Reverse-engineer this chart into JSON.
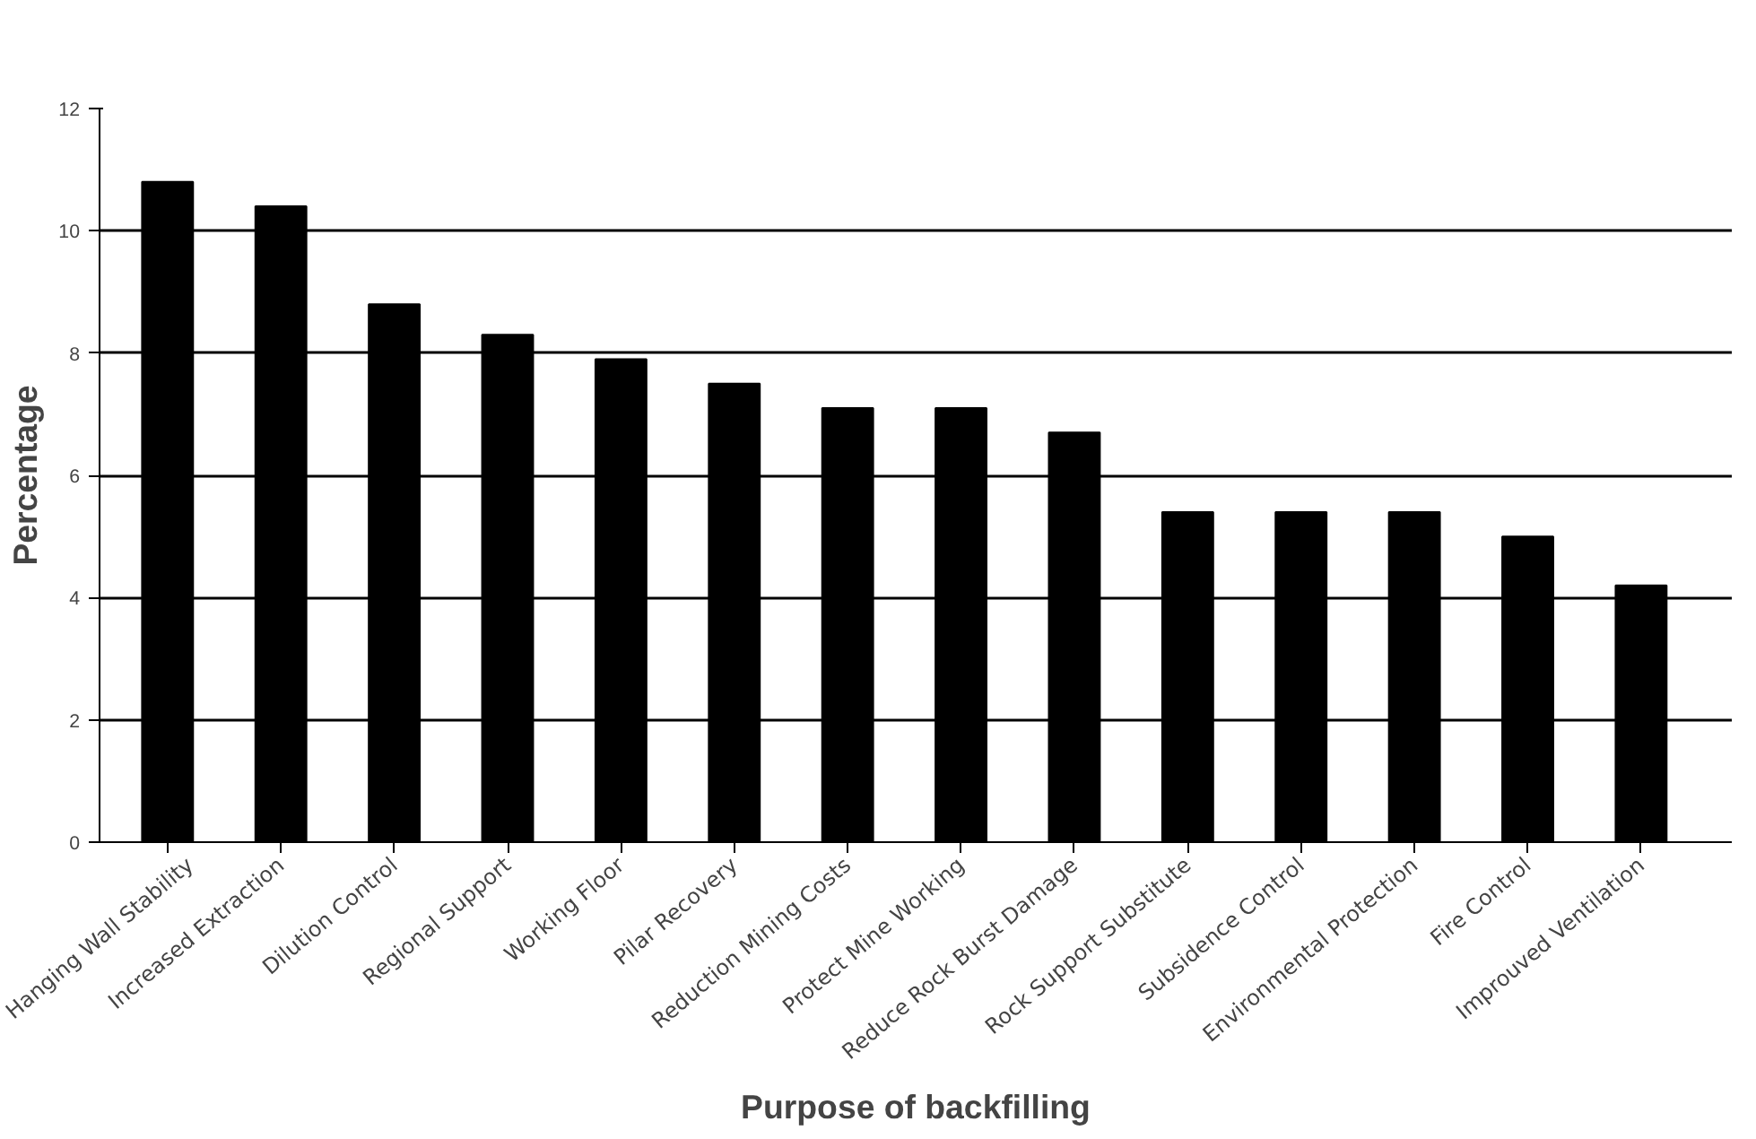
{
  "chart_data": {
    "type": "bar",
    "xlabel": "Purpose of backfilling",
    "ylabel": "Percentage",
    "categories": [
      "Hanging Wall Stability",
      "Increased Extraction",
      "Dilution Control",
      "Regional Support",
      "Working Floor",
      "Pilar Recovery",
      "Reduction Mining Costs",
      "Protect Mine Working",
      "Reduce Rock Burst Damage",
      "Rock Support Substitute",
      "Subsidence Control",
      "Environmental Protection",
      "Fire Control",
      "Improuved Ventilation"
    ],
    "values": [
      10.8,
      10.4,
      8.8,
      8.3,
      7.9,
      7.5,
      7.1,
      7.1,
      6.7,
      5.4,
      5.4,
      5.4,
      5.0,
      4.2
    ],
    "color": "#000000",
    "ylim": [
      0,
      12
    ],
    "yticks": [
      0,
      2,
      4,
      6,
      8,
      10,
      12
    ],
    "grid": "y"
  }
}
